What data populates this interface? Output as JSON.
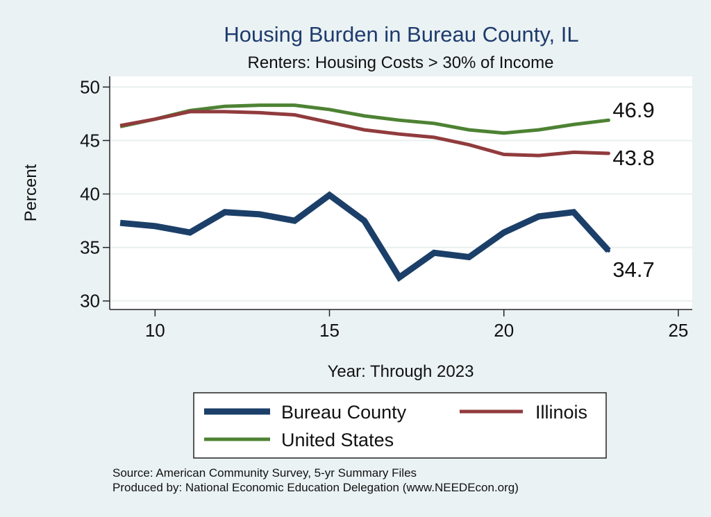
{
  "chart_data": {
    "type": "line",
    "title": "Housing Burden in Bureau County, IL",
    "subtitle": "Renters: Housing Costs > 30% of Income",
    "xlabel": "Year: Through 2023",
    "ylabel": "Percent",
    "xlim": [
      8.7,
      25.4
    ],
    "ylim": [
      29.2,
      51.0
    ],
    "xticks": [
      10,
      15,
      20,
      25
    ],
    "yticks": [
      30,
      35,
      40,
      45,
      50
    ],
    "grid": true,
    "legend_position": "bottom",
    "series": [
      {
        "name": "Bureau County",
        "color": "#1b3f68",
        "width": 9,
        "x": [
          9,
          10,
          11,
          12,
          13,
          14,
          15,
          16,
          17,
          18,
          19,
          20,
          21,
          22,
          23
        ],
        "y": [
          37.3,
          37.0,
          36.4,
          38.3,
          38.1,
          37.5,
          39.9,
          37.5,
          32.2,
          34.5,
          34.1,
          36.4,
          37.9,
          38.3,
          34.7
        ],
        "end_label": "34.7"
      },
      {
        "name": "Illinois",
        "color": "#913b3d",
        "width": 5,
        "x": [
          9,
          10,
          11,
          12,
          13,
          14,
          15,
          16,
          17,
          18,
          19,
          20,
          21,
          22,
          23
        ],
        "y": [
          46.4,
          47.0,
          47.7,
          47.7,
          47.6,
          47.4,
          46.7,
          46.0,
          45.6,
          45.3,
          44.6,
          43.7,
          43.6,
          43.9,
          43.8
        ],
        "end_label": "43.8"
      },
      {
        "name": "United States",
        "color": "#4d8233",
        "width": 5,
        "x": [
          9,
          10,
          11,
          12,
          13,
          14,
          15,
          16,
          17,
          18,
          19,
          20,
          21,
          22,
          23
        ],
        "y": [
          46.3,
          47.0,
          47.8,
          48.2,
          48.3,
          48.3,
          47.9,
          47.3,
          46.9,
          46.6,
          46.0,
          45.7,
          46.0,
          46.5,
          46.9
        ],
        "end_label": "46.9"
      }
    ]
  },
  "source_note": "Source: American Community Survey, 5-yr Summary Files",
  "produced_note": "Produced by: National Economic Education Delegation (www.NEEDEcon.org)"
}
